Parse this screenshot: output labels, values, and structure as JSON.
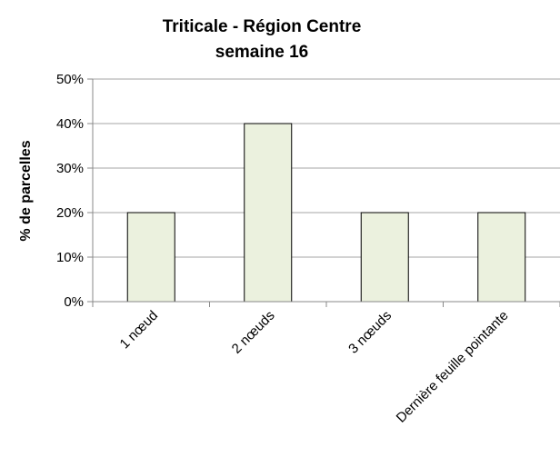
{
  "chart_data": {
    "type": "bar",
    "title": "Triticale - Région Centre",
    "subtitle": "semaine 16",
    "xlabel": "",
    "ylabel": "% de parcelles",
    "categories": [
      "1 nœud",
      "2 nœuds",
      "3 nœuds",
      "Dernière feuille pointante"
    ],
    "values": [
      0.2,
      0.4,
      0.2,
      0.2
    ],
    "ylim": [
      0,
      0.5
    ],
    "yticks": [
      "0%",
      "10%",
      "20%",
      "30%",
      "40%",
      "50%"
    ],
    "grid": true,
    "legend": "none",
    "colors": {
      "bar_fill": "#ebf1de",
      "bar_stroke": "#000000",
      "grid": "#a6a6a6",
      "axis": "#888888"
    }
  }
}
